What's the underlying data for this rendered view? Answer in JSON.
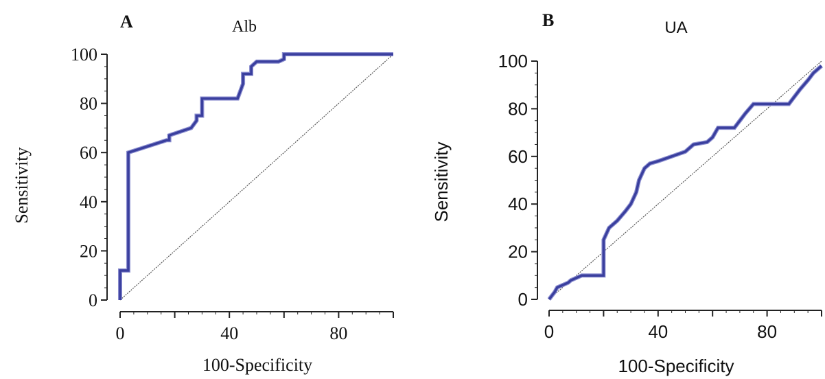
{
  "colors": {
    "roc_line": "#3a3f9e",
    "diagonal": "#555555",
    "axis": "#222222",
    "text": "#111111"
  },
  "chart_data": [
    {
      "type": "line",
      "panel_label": "A",
      "title": "Alb",
      "xlabel": "100-Specificity",
      "ylabel": "Sensitivity",
      "xlim": [
        0,
        100
      ],
      "ylim": [
        0,
        100
      ],
      "x_ticks": [
        0,
        40,
        80
      ],
      "y_ticks": [
        0,
        20,
        40,
        60,
        80,
        100
      ],
      "grid": false,
      "series": [
        {
          "x": [
            0,
            0,
            3,
            3,
            17,
            18,
            18,
            26,
            28,
            28,
            30,
            30,
            43,
            45,
            45,
            48,
            48,
            50,
            52,
            58,
            60,
            60,
            75,
            100
          ],
          "y": [
            0,
            12,
            12,
            60,
            65,
            65,
            67,
            70,
            73,
            75,
            75,
            82,
            82,
            88,
            92,
            92,
            95,
            97,
            97,
            97,
            98,
            100,
            100,
            100
          ]
        },
        {
          "x": [
            0,
            100
          ],
          "y": [
            0,
            100
          ]
        }
      ]
    },
    {
      "type": "line",
      "panel_label": "B",
      "title": "UA",
      "xlabel": "100-Specificity",
      "ylabel": "Sensitivity",
      "xlim": [
        0,
        100
      ],
      "ylim": [
        0,
        100
      ],
      "x_ticks": [
        0,
        40,
        80
      ],
      "y_ticks": [
        0,
        20,
        40,
        60,
        80,
        100
      ],
      "grid": false,
      "series": [
        {
          "x": [
            0,
            2,
            3,
            7,
            8,
            10,
            12,
            20,
            20,
            22,
            25,
            28,
            30,
            32,
            33,
            35,
            37,
            40,
            45,
            50,
            53,
            58,
            60,
            62,
            65,
            68,
            70,
            72,
            75,
            78,
            80,
            85,
            88,
            90,
            92,
            95,
            97,
            100
          ],
          "y": [
            0,
            3,
            5,
            7,
            8,
            9,
            10,
            10,
            25,
            30,
            33,
            37,
            40,
            45,
            50,
            55,
            57,
            58,
            60,
            62,
            65,
            66,
            68,
            72,
            72,
            72,
            75,
            78,
            82,
            82,
            82,
            82,
            82,
            85,
            88,
            92,
            95,
            98
          ]
        },
        {
          "x": [
            0,
            100
          ],
          "y": [
            0,
            100
          ]
        }
      ]
    }
  ]
}
